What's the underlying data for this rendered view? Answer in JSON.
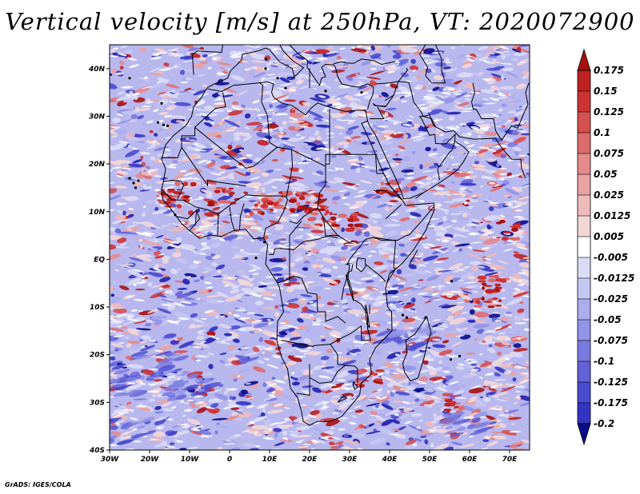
{
  "map": {
    "title": "Vertical velocity [m/s] at 250hPa, VT: 2020072900",
    "footer": "GrADS: IGES/COLA",
    "projection": "lat-lon",
    "lon_range": [
      -30,
      75
    ],
    "lat_range": [
      -40,
      45
    ],
    "lat_ticks": [
      {
        "value": 40,
        "label": "40N"
      },
      {
        "value": 30,
        "label": "30N"
      },
      {
        "value": 20,
        "label": "20N"
      },
      {
        "value": 10,
        "label": "10N"
      },
      {
        "value": 0,
        "label": "EQ"
      },
      {
        "value": -10,
        "label": "10S"
      },
      {
        "value": -20,
        "label": "20S"
      },
      {
        "value": -30,
        "label": "30S"
      },
      {
        "value": -40,
        "label": "40S"
      }
    ],
    "lon_ticks": [
      {
        "value": -30,
        "label": "30W"
      },
      {
        "value": -20,
        "label": "20W"
      },
      {
        "value": -10,
        "label": "10W"
      },
      {
        "value": 0,
        "label": "0"
      },
      {
        "value": 10,
        "label": "10E"
      },
      {
        "value": 20,
        "label": "20E"
      },
      {
        "value": 30,
        "label": "30E"
      },
      {
        "value": 40,
        "label": "40E"
      },
      {
        "value": 50,
        "label": "50E"
      },
      {
        "value": 60,
        "label": "60E"
      },
      {
        "value": 70,
        "label": "70E"
      }
    ],
    "colors": {
      "positive": [
        "#f3d7d7",
        "#eebbbb",
        "#e9a2a2",
        "#e48a8a",
        "#dd6c6c",
        "#d65050",
        "#cc3434",
        "#bf2121",
        "#a81010"
      ],
      "negative": [
        "#dcdcf7",
        "#c6c6f3",
        "#adadee",
        "#9393e7",
        "#7a7ae0",
        "#6262d8",
        "#4a4acf",
        "#3434c3",
        "#2020b0",
        "#0b0b8c"
      ],
      "border": "#000000"
    }
  },
  "colorbar": {
    "labels": [
      "0.175",
      "0.15",
      "0.125",
      "0.1",
      "0.075",
      "0.05",
      "0.025",
      "0.0125",
      "0.005",
      "-0.005",
      "-0.0125",
      "-0.025",
      "-0.05",
      "-0.075",
      "-0.1",
      "-0.125",
      "-0.175",
      "-0.2"
    ],
    "colors": [
      "#a81010",
      "#bf2121",
      "#cc3434",
      "#d65050",
      "#dd6c6c",
      "#e48a8a",
      "#e9a2a2",
      "#eebbbb",
      "#f3d7d7",
      "#ffffff",
      "#dcdcf7",
      "#c6c6f3",
      "#adadee",
      "#9393e7",
      "#7a7ae0",
      "#6262d8",
      "#4a4acf",
      "#3434c3",
      "#2020b0",
      "#0b0b8c"
    ]
  }
}
